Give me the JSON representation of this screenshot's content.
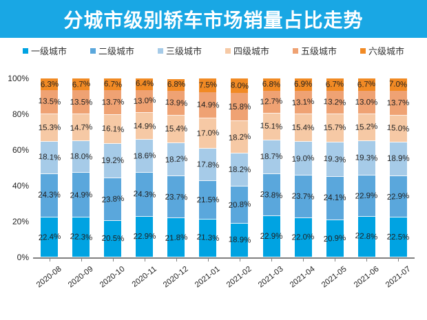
{
  "header": {
    "title": "分城市级别轿车市场销量占比走势",
    "bg_color": "#19A7E4",
    "text_color": "#ffffff"
  },
  "chart_data": {
    "type": "bar",
    "stacked": true,
    "orientation": "vertical",
    "title": "分城市级别轿车市场销量占比走势",
    "xlabel": "",
    "ylabel": "",
    "ylim": [
      0,
      100
    ],
    "yticks": [
      "0%",
      "20%",
      "40%",
      "60%",
      "80%",
      "100%"
    ],
    "grid": false,
    "legend_position": "top",
    "value_suffix": "%",
    "categories": [
      "2020-08",
      "2020-09",
      "2020-10",
      "2020-11",
      "2020-12",
      "2021-01",
      "2021-02",
      "2021-03",
      "2021-04",
      "2021-05",
      "2021-06",
      "2021-07"
    ],
    "series": [
      {
        "name": "一级城市",
        "color": "#00A3E2",
        "values": [
          22.4,
          22.3,
          20.5,
          22.9,
          21.8,
          21.3,
          18.9,
          22.9,
          22.0,
          20.9,
          22.8,
          22.5
        ]
      },
      {
        "name": "二级城市",
        "color": "#5AA7DC",
        "values": [
          24.3,
          24.9,
          23.8,
          24.3,
          23.7,
          21.5,
          20.8,
          23.8,
          23.7,
          24.1,
          22.9,
          22.9
        ]
      },
      {
        "name": "三级城市",
        "color": "#A6CBE8",
        "values": [
          18.1,
          18.0,
          19.2,
          18.6,
          18.2,
          17.8,
          18.2,
          18.7,
          19.0,
          19.3,
          19.3,
          18.9
        ]
      },
      {
        "name": "四级城市",
        "color": "#F6C9A5",
        "values": [
          15.3,
          14.7,
          16.1,
          14.9,
          15.4,
          17.0,
          18.2,
          15.1,
          15.4,
          15.7,
          15.2,
          15.0
        ]
      },
      {
        "name": "五级城市",
        "color": "#EFA273",
        "values": [
          13.5,
          13.5,
          13.7,
          13.0,
          13.9,
          14.9,
          15.8,
          12.7,
          13.1,
          13.2,
          13.0,
          13.7
        ]
      },
      {
        "name": "六级城市",
        "color": "#F18A24",
        "values": [
          6.3,
          6.7,
          6.7,
          6.4,
          6.8,
          7.5,
          8.0,
          6.8,
          6.9,
          6.7,
          6.7,
          7.0
        ]
      }
    ]
  }
}
